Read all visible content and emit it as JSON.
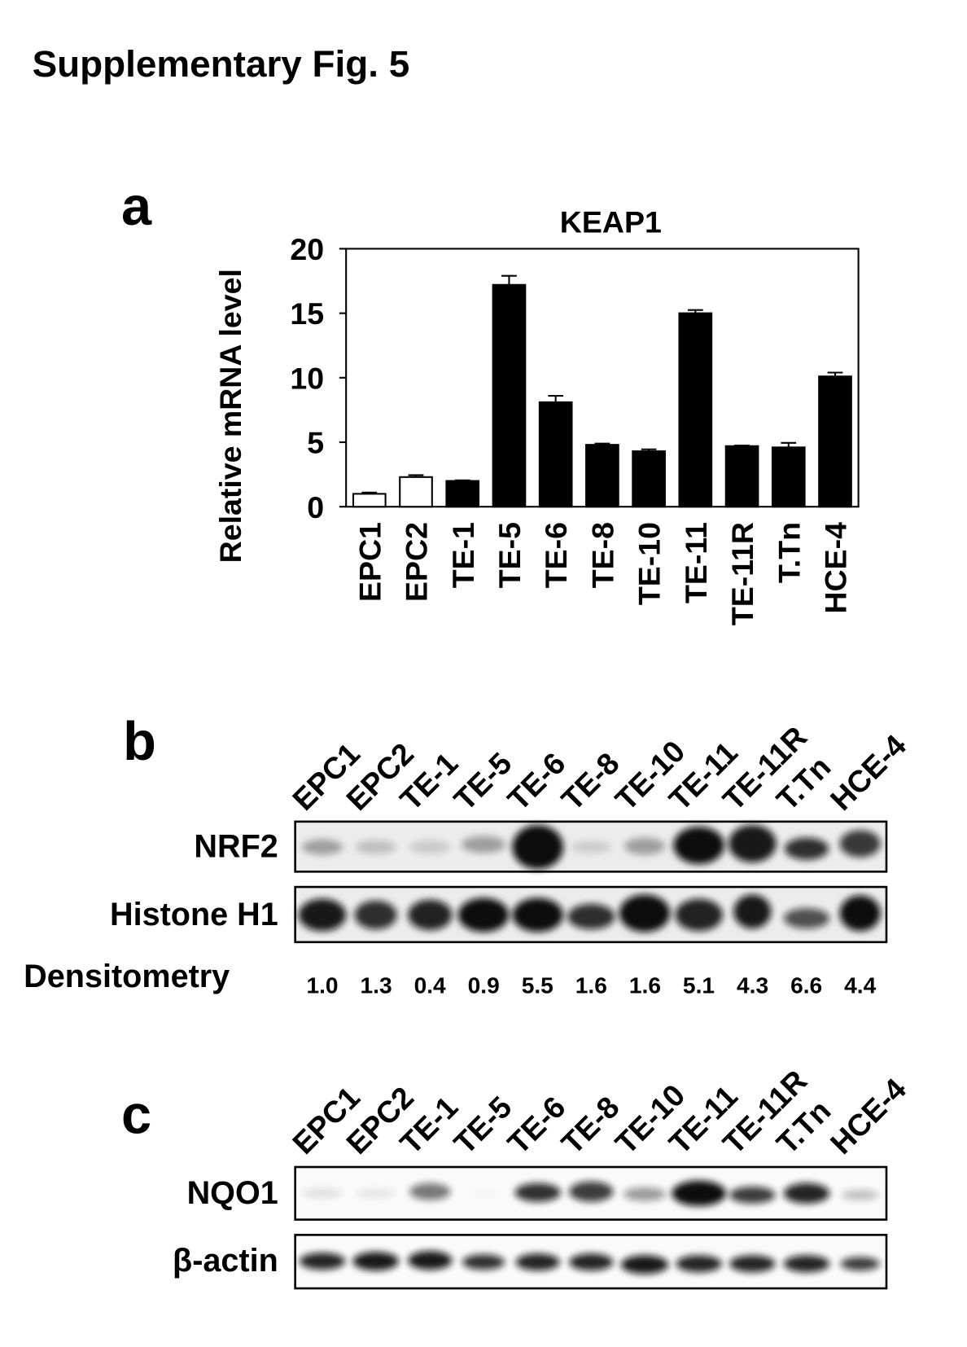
{
  "figure_title": "Supplementary Fig. 5",
  "chart_data": {
    "type": "bar",
    "panel": "a",
    "title": "KEAP1",
    "ylabel": "Relative mRNA level",
    "categories": [
      "EPC1",
      "EPC2",
      "TE-1",
      "TE-5",
      "TE-6",
      "TE-8",
      "TE-10",
      "TE-11",
      "TE-11R",
      "T.Tn",
      "HCE-4"
    ],
    "values": [
      1.0,
      2.3,
      2.0,
      17.2,
      8.1,
      4.8,
      4.3,
      15.0,
      4.7,
      4.6,
      10.1
    ],
    "errors": [
      0.1,
      0.15,
      0.05,
      0.7,
      0.5,
      0.1,
      0.15,
      0.25,
      0.05,
      0.35,
      0.3
    ],
    "colors": [
      "#ffffff",
      "#ffffff",
      "#000000",
      "#000000",
      "#000000",
      "#000000",
      "#000000",
      "#000000",
      "#000000",
      "#000000",
      "#000000"
    ],
    "ylim": [
      0,
      20
    ],
    "yticks": [
      0,
      5,
      10,
      15,
      20
    ]
  },
  "panel_b": {
    "panel": "b",
    "lanes": [
      "EPC1",
      "EPC2",
      "TE-1",
      "TE-5",
      "TE-6",
      "TE-8",
      "TE-10",
      "TE-11",
      "TE-11R",
      "T.Tn",
      "HCE-4"
    ],
    "rows": [
      "NRF2",
      "Histone H1"
    ],
    "densitometry_label": "Densitometry",
    "densitometry": [
      "1.0",
      "1.3",
      "0.4",
      "0.9",
      "5.5",
      "1.6",
      "1.6",
      "5.1",
      "4.3",
      "6.6",
      "4.4"
    ]
  },
  "panel_c": {
    "panel": "c",
    "lanes": [
      "EPC1",
      "EPC2",
      "TE-1",
      "TE-5",
      "TE-6",
      "TE-8",
      "TE-10",
      "TE-11",
      "TE-11R",
      "T.Tn",
      "HCE-4"
    ],
    "rows": [
      "NQO1",
      "β-actin"
    ]
  }
}
